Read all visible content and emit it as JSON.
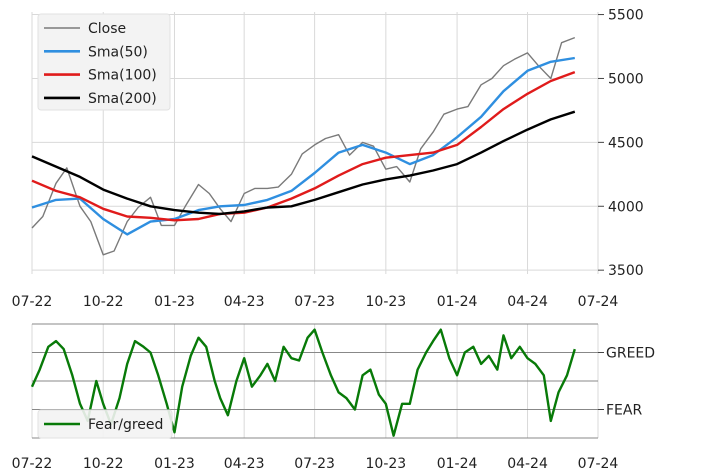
{
  "colors": {
    "close": "#7a7a7a",
    "sma50": "#2f8fe0",
    "sma100": "#e01b1b",
    "sma200": "#000000",
    "fear_greed": "#087a08",
    "grid": "#d9d9d9",
    "band": "#888888",
    "legend_bg": "#f3f3f3"
  },
  "chart_data": [
    {
      "type": "line",
      "title": "",
      "xlabel": "",
      "ylabel": "",
      "x_ticks": [
        "07-22",
        "10-22",
        "01-23",
        "04-23",
        "07-23",
        "10-23",
        "01-24",
        "04-24",
        "07-24"
      ],
      "y_ticks": [
        3500,
        4000,
        4500,
        5000,
        5500
      ],
      "ylim": [
        3470,
        5520
      ],
      "grid": true,
      "legend_position": "top-left",
      "series": [
        {
          "name": "Close",
          "key": "close",
          "x": [
            "2022-07-01",
            "2022-07-15",
            "2022-08-01",
            "2022-08-15",
            "2022-09-01",
            "2022-09-15",
            "2022-10-01",
            "2022-10-15",
            "2022-11-01",
            "2022-11-15",
            "2022-12-01",
            "2022-12-15",
            "2023-01-01",
            "2023-01-15",
            "2023-02-01",
            "2023-02-15",
            "2023-03-01",
            "2023-03-15",
            "2023-04-01",
            "2023-04-15",
            "2023-05-01",
            "2023-05-15",
            "2023-06-01",
            "2023-06-15",
            "2023-07-01",
            "2023-07-15",
            "2023-08-01",
            "2023-08-15",
            "2023-09-01",
            "2023-09-15",
            "2023-10-01",
            "2023-10-15",
            "2023-11-01",
            "2023-11-15",
            "2023-12-01",
            "2023-12-15",
            "2024-01-01",
            "2024-01-15",
            "2024-02-01",
            "2024-02-15",
            "2024-03-01",
            "2024-03-15",
            "2024-04-01",
            "2024-04-15",
            "2024-05-01",
            "2024-05-15",
            "2024-06-01"
          ],
          "values": [
            3830,
            3920,
            4180,
            4300,
            4000,
            3880,
            3620,
            3650,
            3880,
            3990,
            4070,
            3850,
            3850,
            4000,
            4170,
            4100,
            3980,
            3880,
            4100,
            4140,
            4140,
            4150,
            4250,
            4410,
            4480,
            4530,
            4560,
            4400,
            4500,
            4470,
            4290,
            4310,
            4190,
            4450,
            4580,
            4720,
            4760,
            4780,
            4950,
            5000,
            5100,
            5150,
            5200,
            5100,
            5000,
            5280,
            5320
          ]
        },
        {
          "name": "Sma(50)",
          "key": "sma50",
          "x": [
            "2022-07-01",
            "2022-08-01",
            "2022-09-01",
            "2022-10-01",
            "2022-11-01",
            "2022-12-01",
            "2023-01-01",
            "2023-02-01",
            "2023-03-01",
            "2023-04-01",
            "2023-05-01",
            "2023-06-01",
            "2023-07-01",
            "2023-08-01",
            "2023-09-01",
            "2023-10-01",
            "2023-11-01",
            "2023-12-01",
            "2024-01-01",
            "2024-02-01",
            "2024-03-01",
            "2024-04-01",
            "2024-05-01",
            "2024-06-01"
          ],
          "values": [
            3990,
            4050,
            4060,
            3900,
            3780,
            3880,
            3900,
            3970,
            4000,
            4010,
            4050,
            4120,
            4260,
            4420,
            4480,
            4420,
            4330,
            4400,
            4540,
            4700,
            4900,
            5060,
            5130,
            5160
          ]
        },
        {
          "name": "Sma(100)",
          "key": "sma100",
          "x": [
            "2022-07-01",
            "2022-08-01",
            "2022-09-01",
            "2022-10-01",
            "2022-11-01",
            "2022-12-01",
            "2023-01-01",
            "2023-02-01",
            "2023-03-01",
            "2023-04-01",
            "2023-05-01",
            "2023-06-01",
            "2023-07-01",
            "2023-08-01",
            "2023-09-01",
            "2023-10-01",
            "2023-11-01",
            "2023-12-01",
            "2024-01-01",
            "2024-02-01",
            "2024-03-01",
            "2024-04-01",
            "2024-05-01",
            "2024-06-01"
          ],
          "values": [
            4200,
            4120,
            4070,
            3980,
            3920,
            3910,
            3890,
            3900,
            3940,
            3950,
            3990,
            4060,
            4140,
            4240,
            4330,
            4380,
            4400,
            4420,
            4480,
            4620,
            4760,
            4880,
            4980,
            5050
          ]
        },
        {
          "name": "Sma(200)",
          "key": "sma200",
          "x": [
            "2022-07-01",
            "2022-08-01",
            "2022-09-01",
            "2022-10-01",
            "2022-11-01",
            "2022-12-01",
            "2023-01-01",
            "2023-02-01",
            "2023-03-01",
            "2023-04-01",
            "2023-05-01",
            "2023-06-01",
            "2023-07-01",
            "2023-08-01",
            "2023-09-01",
            "2023-10-01",
            "2023-11-01",
            "2023-12-01",
            "2024-01-01",
            "2024-02-01",
            "2024-03-01",
            "2024-04-01",
            "2024-05-01",
            "2024-06-01"
          ],
          "values": [
            4390,
            4310,
            4230,
            4130,
            4060,
            4000,
            3970,
            3950,
            3940,
            3960,
            3990,
            4000,
            4050,
            4110,
            4170,
            4210,
            4240,
            4280,
            4330,
            4420,
            4510,
            4600,
            4680,
            4740
          ]
        }
      ]
    },
    {
      "type": "line",
      "title": "",
      "xlabel": "",
      "ylabel": "",
      "x_ticks": [
        "07-22",
        "10-22",
        "01-23",
        "04-23",
        "07-23",
        "10-23",
        "01-24",
        "04-24",
        "07-24"
      ],
      "y_tick_labels": [
        {
          "value": 0.75,
          "label": "GREED"
        },
        {
          "value": 0.25,
          "label": "FEAR"
        }
      ],
      "ylim": [
        0.0,
        1.0
      ],
      "reference_lines": [
        0.0,
        0.25,
        0.5,
        0.75,
        1.0
      ],
      "legend_position": "bottom-left",
      "series": [
        {
          "name": "Fear/greed",
          "key": "fear_greed",
          "x": [
            "2022-07-01",
            "2022-07-11",
            "2022-07-22",
            "2022-08-01",
            "2022-08-11",
            "2022-08-22",
            "2022-09-01",
            "2022-09-11",
            "2022-09-22",
            "2022-10-01",
            "2022-10-11",
            "2022-10-22",
            "2022-11-01",
            "2022-11-11",
            "2022-11-22",
            "2022-12-01",
            "2022-12-11",
            "2022-12-22",
            "2023-01-01",
            "2023-01-11",
            "2023-01-22",
            "2023-02-01",
            "2023-02-11",
            "2023-02-22",
            "2023-03-01",
            "2023-03-11",
            "2023-03-22",
            "2023-04-01",
            "2023-04-11",
            "2023-04-22",
            "2023-05-01",
            "2023-05-11",
            "2023-05-22",
            "2023-06-01",
            "2023-06-11",
            "2023-06-22",
            "2023-07-01",
            "2023-07-11",
            "2023-07-22",
            "2023-08-01",
            "2023-08-11",
            "2023-08-22",
            "2023-09-01",
            "2023-09-11",
            "2023-09-22",
            "2023-10-01",
            "2023-10-11",
            "2023-10-22",
            "2023-11-01",
            "2023-11-11",
            "2023-11-22",
            "2023-12-01",
            "2023-12-11",
            "2023-12-22",
            "2024-01-01",
            "2024-01-11",
            "2024-01-22",
            "2024-02-01",
            "2024-02-11",
            "2024-02-22",
            "2024-03-01",
            "2024-03-11",
            "2024-03-22",
            "2024-04-01",
            "2024-04-11",
            "2024-04-22",
            "2024-05-01",
            "2024-05-11",
            "2024-05-22",
            "2024-06-01"
          ],
          "values": [
            0.45,
            0.6,
            0.8,
            0.85,
            0.78,
            0.55,
            0.3,
            0.15,
            0.5,
            0.3,
            0.12,
            0.35,
            0.65,
            0.85,
            0.8,
            0.75,
            0.55,
            0.3,
            0.05,
            0.45,
            0.72,
            0.88,
            0.8,
            0.5,
            0.35,
            0.2,
            0.5,
            0.7,
            0.45,
            0.55,
            0.65,
            0.5,
            0.8,
            0.7,
            0.68,
            0.88,
            0.95,
            0.75,
            0.55,
            0.4,
            0.35,
            0.25,
            0.55,
            0.6,
            0.38,
            0.3,
            0.02,
            0.3,
            0.3,
            0.6,
            0.75,
            0.85,
            0.95,
            0.7,
            0.55,
            0.75,
            0.8,
            0.65,
            0.72,
            0.6,
            0.9,
            0.7,
            0.8,
            0.7,
            0.65,
            0.55,
            0.15,
            0.4,
            0.55,
            0.78
          ]
        }
      ]
    }
  ]
}
